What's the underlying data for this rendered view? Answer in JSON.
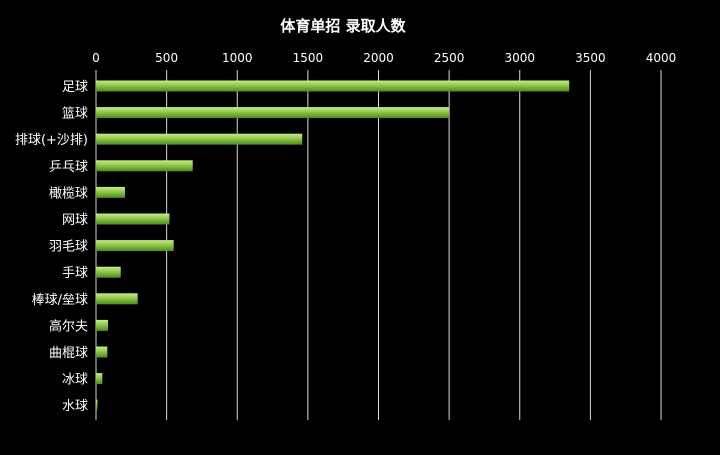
{
  "chart_data": {
    "type": "bar",
    "orientation": "horizontal",
    "title": "体育单招 录取人数",
    "categories": [
      "足球",
      "篮球",
      "排球(+沙排)",
      "乒乓球",
      "橄榄球",
      "网球",
      "羽毛球",
      "手球",
      "棒球/垒球",
      "高尔夫",
      "曲棍球",
      "冰球",
      "水球"
    ],
    "values": [
      3350,
      2500,
      1460,
      685,
      205,
      520,
      550,
      175,
      295,
      85,
      80,
      45,
      10
    ],
    "xticks": [
      0,
      500,
      1000,
      1500,
      2000,
      2500,
      3000,
      3500,
      4000
    ],
    "xlim": [
      0,
      4000
    ],
    "xaxis_position": "top",
    "grid": true,
    "legend": "none",
    "colors": {
      "background": "#000000",
      "bar_light": "#c9ec8a",
      "bar_mid": "#8fc84a",
      "bar_dark": "#4f8a1e",
      "text": "#ffffff",
      "grid": "#d9d9d9"
    }
  }
}
